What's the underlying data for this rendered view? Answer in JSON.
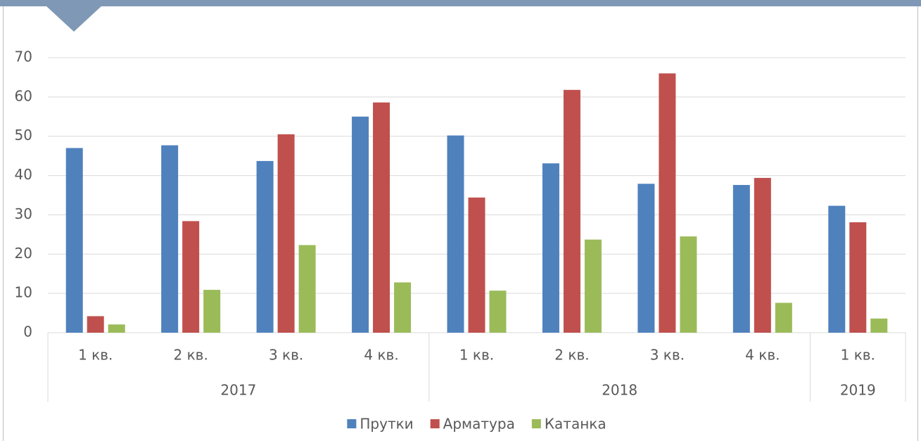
{
  "chart_data": {
    "type": "bar",
    "categories": [
      "1 кв.",
      "2 кв.",
      "3 кв.",
      "4 кв.",
      "1 кв.",
      "2 кв.",
      "3 кв.",
      "4 кв.",
      "1 кв."
    ],
    "groups": [
      {
        "label": "2017",
        "span": 4
      },
      {
        "label": "2018",
        "span": 4
      },
      {
        "label": "2019",
        "span": 1
      }
    ],
    "series": [
      {
        "name": "Прутки",
        "color": "#4f81bd",
        "values": [
          47,
          47.7,
          43.7,
          55,
          50.2,
          43.1,
          37.9,
          37.6,
          32.3
        ]
      },
      {
        "name": "Арматура",
        "color": "#c0504d",
        "values": [
          4.2,
          28.4,
          50.5,
          58.6,
          34.4,
          61.8,
          66,
          39.4,
          28.1
        ]
      },
      {
        "name": "Катанка",
        "color": "#9bbb59",
        "values": [
          2.1,
          10.9,
          22.3,
          12.8,
          10.7,
          23.7,
          24.5,
          7.6,
          3.6
        ]
      }
    ],
    "ylim": [
      0,
      70
    ],
    "yticks": [
      0,
      10,
      20,
      30,
      40,
      50,
      60,
      70
    ],
    "grid": true,
    "legend": "bottom"
  }
}
